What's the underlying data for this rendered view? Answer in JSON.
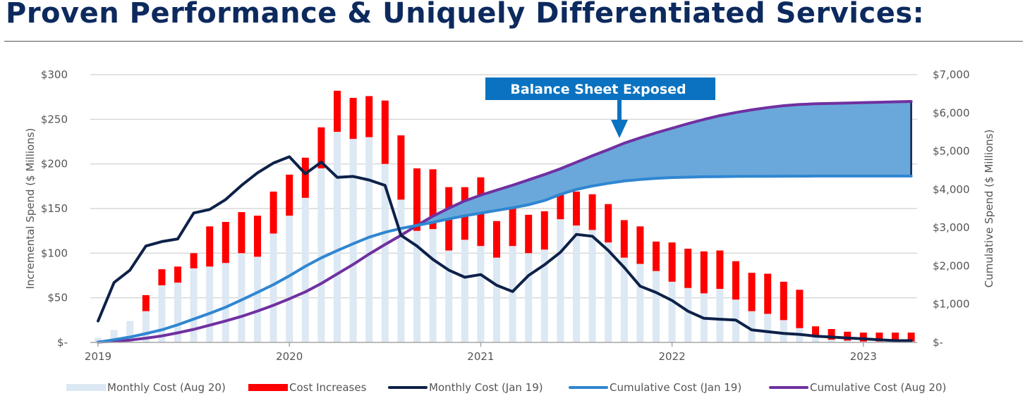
{
  "header": {
    "title": "Proven Performance & Uniquely Differentiated Services:"
  },
  "colors": {
    "title": "#0d2a5e",
    "monthly_aug20": "#dce8f3",
    "cost_increases": "#ff0000",
    "monthly_jan19": "#0d2149",
    "cumulative_jan19": "#2f86d1",
    "cumulative_aug20": "#7030a0",
    "exposed_fill": "#6aa8db",
    "callout_bg": "#0a72c0"
  },
  "chart_data": {
    "type": "bar",
    "title": "",
    "annotation": "Balance Sheet Exposed",
    "ylabel_left": "Incremental Spend ($ Millions)",
    "ylabel_right": "Cumulative Spend ($ Millions)",
    "ylim_left": [
      0,
      300
    ],
    "ylim_right": [
      0,
      7000
    ],
    "left_ticks": [
      0,
      50,
      100,
      150,
      200,
      250,
      300
    ],
    "left_tick_labels": [
      "$-",
      "$50",
      "$100",
      "$150",
      "$200",
      "$250",
      "$300"
    ],
    "right_ticks": [
      0,
      1000,
      2000,
      3000,
      4000,
      5000,
      6000,
      7000
    ],
    "right_tick_labels": [
      "$-",
      "$1,000",
      "$2,000",
      "$3,000",
      "$4,000",
      "$5,000",
      "$6,000",
      "$7,000"
    ],
    "x_tick_labels": [
      "2019",
      "2020",
      "2021",
      "2022",
      "2023"
    ],
    "x_tick_months": [
      0,
      12,
      24,
      36,
      48
    ],
    "month_count": 52,
    "grid": true,
    "legend": "bottom",
    "series": [
      {
        "name": "Monthly Cost (Aug 20)",
        "kind": "bar",
        "axis": "left",
        "values": [
          5,
          14,
          24,
          35,
          64,
          67,
          83,
          85,
          89,
          100,
          96,
          122,
          142,
          162,
          195,
          236,
          228,
          230,
          200,
          160,
          125,
          127,
          103,
          115,
          108,
          95,
          108,
          100,
          104,
          138,
          131,
          126,
          112,
          95,
          88,
          80,
          68,
          61,
          55,
          60,
          48,
          35,
          32,
          25,
          16,
          6,
          3,
          2,
          1,
          1,
          1,
          1
        ]
      },
      {
        "name": "Cost Increases",
        "kind": "bar",
        "axis": "left",
        "values": [
          0,
          0,
          0,
          18,
          18,
          18,
          17,
          45,
          46,
          46,
          46,
          47,
          46,
          45,
          46,
          46,
          46,
          46,
          71,
          72,
          70,
          67,
          71,
          59,
          77,
          41,
          42,
          43,
          43,
          28,
          38,
          40,
          43,
          42,
          42,
          33,
          44,
          44,
          47,
          43,
          43,
          43,
          45,
          43,
          43,
          12,
          12,
          10,
          10,
          10,
          10,
          10
        ]
      },
      {
        "name": "Monthly Cost (Jan 19)",
        "kind": "line",
        "axis": "left",
        "values": [
          24,
          67,
          81,
          108,
          113,
          116,
          145,
          149,
          160,
          176,
          190,
          201,
          208,
          189,
          202,
          185,
          186,
          182,
          176,
          120,
          108,
          93,
          81,
          73,
          76,
          64,
          57,
          75,
          87,
          101,
          121,
          119,
          103,
          84,
          63,
          56,
          47,
          35,
          27,
          26,
          25,
          14,
          12,
          10,
          9,
          7,
          6,
          5,
          4,
          3,
          2,
          2
        ]
      },
      {
        "name": "Cumulative Cost (Jan 19)",
        "kind": "line",
        "axis": "right",
        "values": [
          5,
          70,
          140,
          230,
          330,
          460,
          610,
          760,
          920,
          1110,
          1310,
          1510,
          1740,
          1990,
          2210,
          2400,
          2580,
          2750,
          2880,
          2980,
          3060,
          3140,
          3230,
          3310,
          3380,
          3450,
          3520,
          3600,
          3710,
          3870,
          4000,
          4090,
          4160,
          4220,
          4260,
          4290,
          4310,
          4320,
          4330,
          4335,
          4340,
          4342,
          4344,
          4346,
          4348,
          4350,
          4350,
          4350,
          4350,
          4350,
          4350,
          4350
        ]
      },
      {
        "name": "Cumulative Cost (Aug 20)",
        "kind": "line",
        "axis": "right",
        "values": [
          10,
          30,
          60,
          110,
          170,
          250,
          340,
          450,
          560,
          680,
          820,
          970,
          1140,
          1320,
          1540,
          1790,
          2040,
          2310,
          2560,
          2800,
          3060,
          3300,
          3510,
          3700,
          3850,
          3980,
          4110,
          4250,
          4390,
          4540,
          4710,
          4880,
          5040,
          5210,
          5350,
          5480,
          5600,
          5720,
          5830,
          5930,
          6010,
          6080,
          6140,
          6190,
          6220,
          6240,
          6250,
          6260,
          6270,
          6280,
          6290,
          6300
        ]
      }
    ],
    "exposed_region": {
      "from_month": 20,
      "to_month": 51,
      "upper": "Cumulative Cost (Aug 20)",
      "lower": "Cumulative Cost (Jan 19)"
    }
  },
  "legend": {
    "items": [
      {
        "label": "Monthly Cost (Aug 20)"
      },
      {
        "label": "Cost Increases"
      },
      {
        "label": "Monthly Cost (Jan 19)"
      },
      {
        "label": "Cumulative Cost (Jan 19)"
      },
      {
        "label": "Cumulative Cost (Aug 20)"
      }
    ]
  }
}
